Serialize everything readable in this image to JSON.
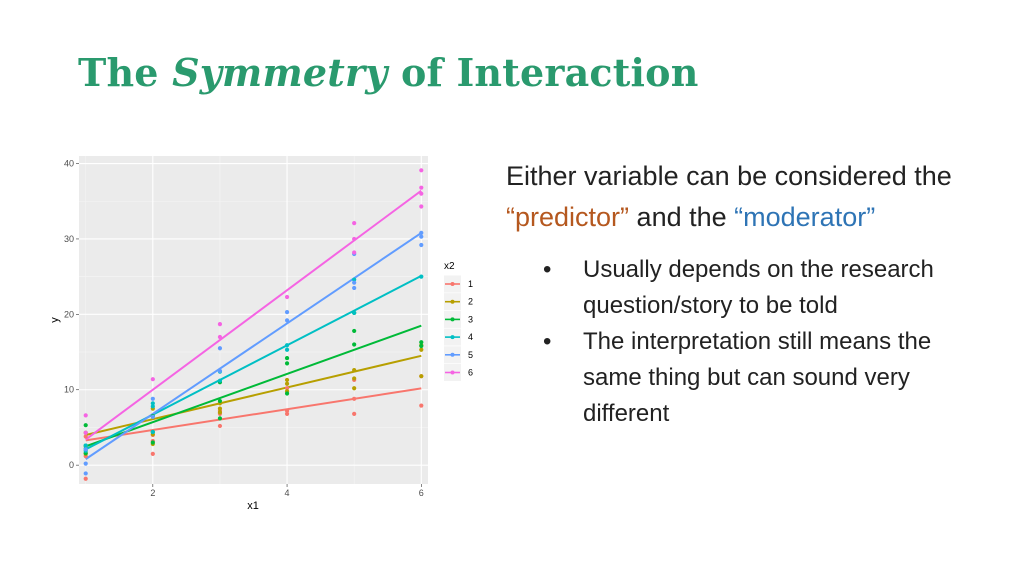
{
  "slide": {
    "title_part1": "The",
    "title_part2": "Symmetry",
    "title_part3": "of Interaction",
    "lead": {
      "text1": "Either variable can be considered the",
      "predictor": "“predictor”",
      "text2": "and the",
      "moderator": "“moderator”"
    },
    "bullets": [
      "Usually depends on the research question/story to be told",
      "The interpretation still means the same thing but can sound very different"
    ],
    "bullet_char": "•",
    "colors": {
      "title": "#2a9a6e",
      "predictor": "#b5581f",
      "moderator": "#2e74b5"
    }
  },
  "chart_data": {
    "type": "scatter",
    "xlabel": "x1",
    "ylabel": "y",
    "xlim": [
      0.9,
      6.1
    ],
    "ylim": [
      -2.5,
      41
    ],
    "xticks": [
      2,
      4,
      6
    ],
    "yticks": [
      0,
      10,
      20,
      30,
      40
    ],
    "grid": true,
    "legend": {
      "title": "x2",
      "position": "right"
    },
    "series": [
      {
        "name": "1",
        "color": "#f8766d",
        "fit": [
          1.9,
          1.38
        ],
        "points": [
          [
            1,
            -1.8
          ],
          [
            1,
            1.2
          ],
          [
            1,
            3.8
          ],
          [
            2,
            1.5
          ],
          [
            2,
            3.2
          ],
          [
            2,
            4.0
          ],
          [
            3,
            5.2
          ],
          [
            3,
            6.8
          ],
          [
            3,
            7.2
          ],
          [
            4,
            6.8
          ],
          [
            4,
            7.2
          ],
          [
            4,
            10.2
          ],
          [
            5,
            6.8
          ],
          [
            5,
            8.8
          ],
          [
            5,
            11.3
          ],
          [
            6,
            7.9
          ],
          [
            6,
            11.8
          ]
        ]
      },
      {
        "name": "2",
        "color": "#b79f00",
        "fit": [
          1.9,
          2.1
        ],
        "points": [
          [
            1,
            1.5
          ],
          [
            1,
            2.5
          ],
          [
            1,
            4.3
          ],
          [
            2,
            2.8
          ],
          [
            2,
            4.1
          ],
          [
            2,
            7.5
          ],
          [
            3,
            7.0
          ],
          [
            3,
            7.5
          ],
          [
            3,
            8.2
          ],
          [
            4,
            9.8
          ],
          [
            4,
            10.8
          ],
          [
            4,
            11.3
          ],
          [
            5,
            10.2
          ],
          [
            5,
            11.5
          ],
          [
            5,
            12.6
          ],
          [
            6,
            11.8
          ],
          [
            6,
            15.3
          ],
          [
            6,
            15.9
          ]
        ]
      },
      {
        "name": "3",
        "color": "#00ba38",
        "fit": [
          -0.7,
          3.2
        ],
        "points": [
          [
            1,
            1.6
          ],
          [
            1,
            2.6
          ],
          [
            1,
            5.3
          ],
          [
            2,
            3.0
          ],
          [
            2,
            4.4
          ],
          [
            2,
            6.5
          ],
          [
            3,
            6.2
          ],
          [
            3,
            8.5
          ],
          [
            3,
            11.0
          ],
          [
            4,
            9.5
          ],
          [
            4,
            13.5
          ],
          [
            4,
            14.2
          ],
          [
            5,
            16.0
          ],
          [
            5,
            17.8
          ],
          [
            5,
            20.2
          ],
          [
            6,
            15.8
          ],
          [
            6,
            16.3
          ]
        ]
      },
      {
        "name": "4",
        "color": "#00bfc4",
        "fit": [
          -2.5,
          4.6
        ],
        "points": [
          [
            1,
            1.9
          ],
          [
            1,
            2.2
          ],
          [
            1,
            2.6
          ],
          [
            2,
            4.4
          ],
          [
            2,
            7.8
          ],
          [
            2,
            8.2
          ],
          [
            3,
            11.2
          ],
          [
            3,
            12.4
          ],
          [
            4,
            15.3
          ],
          [
            4,
            15.9
          ],
          [
            5,
            20.2
          ],
          [
            5,
            24.6
          ],
          [
            6,
            25.0
          ]
        ]
      },
      {
        "name": "5",
        "color": "#619cff",
        "fit": [
          -5.2,
          6.0
        ],
        "points": [
          [
            1,
            -1.1
          ],
          [
            1,
            0.2
          ],
          [
            1,
            2.1
          ],
          [
            2,
            6.4
          ],
          [
            2,
            8.8
          ],
          [
            3,
            12.5
          ],
          [
            3,
            15.5
          ],
          [
            4,
            19.2
          ],
          [
            4,
            20.3
          ],
          [
            5,
            23.5
          ],
          [
            5,
            24.2
          ],
          [
            5,
            28.0
          ],
          [
            6,
            29.2
          ],
          [
            6,
            30.3
          ],
          [
            6,
            30.8
          ]
        ]
      },
      {
        "name": "6",
        "color": "#f564e3",
        "fit": [
          -3.2,
          6.6
        ],
        "points": [
          [
            1,
            4.3
          ],
          [
            1,
            6.6
          ],
          [
            2,
            11.4
          ],
          [
            3,
            17.0
          ],
          [
            3,
            18.7
          ],
          [
            4,
            22.3
          ],
          [
            5,
            28.2
          ],
          [
            5,
            30.0
          ],
          [
            5,
            32.1
          ],
          [
            6,
            34.3
          ],
          [
            6,
            36.0
          ],
          [
            6,
            36.8
          ],
          [
            6,
            39.1
          ]
        ]
      }
    ]
  }
}
